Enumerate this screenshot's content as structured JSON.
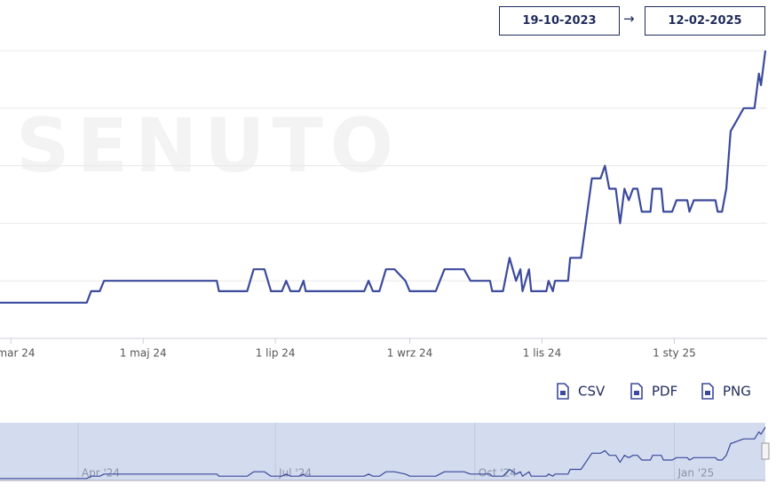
{
  "controls": {
    "date_from": "19-10-2023",
    "arrow": "→",
    "date_to": "12-02-2025",
    "exports": [
      "CSV",
      "PDF",
      "PNG"
    ]
  },
  "chart_data": {
    "type": "line",
    "watermark": "SENUTO",
    "xlim": [
      "2024-02-25",
      "2025-02-12"
    ],
    "ylim": [
      0,
      5
    ],
    "yticks": [
      0,
      1,
      2,
      3,
      4,
      5
    ],
    "grid": true,
    "xticks": [
      {
        "value": "2024-03-01",
        "label": "1 mar 24"
      },
      {
        "value": "2024-05-01",
        "label": "1 maj 24"
      },
      {
        "value": "2024-07-01",
        "label": "1 lip 24"
      },
      {
        "value": "2024-09-01",
        "label": "1 wrz 24"
      },
      {
        "value": "2024-11-01",
        "label": "1 lis 24"
      },
      {
        "value": "2025-01-01",
        "label": "1 sty 25"
      }
    ],
    "series": [
      {
        "color": "#3b4a9c",
        "x": [
          "2024-02-25",
          "2024-04-05",
          "2024-04-07",
          "2024-04-11",
          "2024-04-13",
          "2024-06-04",
          "2024-06-05",
          "2024-06-18",
          "2024-06-21",
          "2024-06-26",
          "2024-06-29",
          "2024-07-04",
          "2024-07-06",
          "2024-07-08",
          "2024-07-12",
          "2024-07-14",
          "2024-07-15",
          "2024-08-11",
          "2024-08-13",
          "2024-08-15",
          "2024-08-18",
          "2024-08-21",
          "2024-08-25",
          "2024-08-30",
          "2024-09-01",
          "2024-09-13",
          "2024-09-17",
          "2024-09-26",
          "2024-09-29",
          "2024-10-08",
          "2024-10-09",
          "2024-10-14",
          "2024-10-17",
          "2024-10-20",
          "2024-10-22",
          "2024-10-23",
          "2024-10-26",
          "2024-10-27",
          "2024-11-03",
          "2024-11-04",
          "2024-11-06",
          "2024-11-07",
          "2024-11-13",
          "2024-11-14",
          "2024-11-19",
          "2024-11-24",
          "2024-11-28",
          "2024-11-30",
          "2024-12-02",
          "2024-12-05",
          "2024-12-07",
          "2024-12-09",
          "2024-12-11",
          "2024-12-13",
          "2024-12-15",
          "2024-12-17",
          "2024-12-21",
          "2024-12-22",
          "2024-12-26",
          "2024-12-27",
          "2024-12-31",
          "2025-01-02",
          "2025-01-07",
          "2025-01-08",
          "2025-01-10",
          "2025-01-20",
          "2025-01-21",
          "2025-01-23",
          "2025-01-25",
          "2025-01-27",
          "2025-01-30",
          "2025-02-02",
          "2025-02-07",
          "2025-02-09",
          "2025-02-10",
          "2025-02-12"
        ],
        "values": [
          0.62,
          0.62,
          0.82,
          0.82,
          1.0,
          1.0,
          0.82,
          0.82,
          1.2,
          1.2,
          0.82,
          0.82,
          1.0,
          0.82,
          0.82,
          1.0,
          0.82,
          0.82,
          1.0,
          0.82,
          0.82,
          1.2,
          1.2,
          1.0,
          0.82,
          0.82,
          1.2,
          1.2,
          1.0,
          1.0,
          0.82,
          0.82,
          1.4,
          1.0,
          1.2,
          0.82,
          1.2,
          0.82,
          0.82,
          1.0,
          0.82,
          1.0,
          1.0,
          1.4,
          1.4,
          2.78,
          2.78,
          3.0,
          2.6,
          2.6,
          2.0,
          2.6,
          2.4,
          2.6,
          2.6,
          2.2,
          2.2,
          2.6,
          2.6,
          2.2,
          2.2,
          2.4,
          2.4,
          2.2,
          2.4,
          2.4,
          2.2,
          2.2,
          2.6,
          3.6,
          3.8,
          4.0,
          4.0,
          4.6,
          4.4,
          5.0
        ]
      }
    ],
    "navigator": {
      "xticks": [
        {
          "value": "2024-04-01",
          "label": "Apr '24"
        },
        {
          "value": "2024-07-01",
          "label": "Jul '24"
        },
        {
          "value": "2024-10-01",
          "label": "Oct '24"
        },
        {
          "value": "2025-01-01",
          "label": "Jan '25"
        }
      ]
    }
  }
}
